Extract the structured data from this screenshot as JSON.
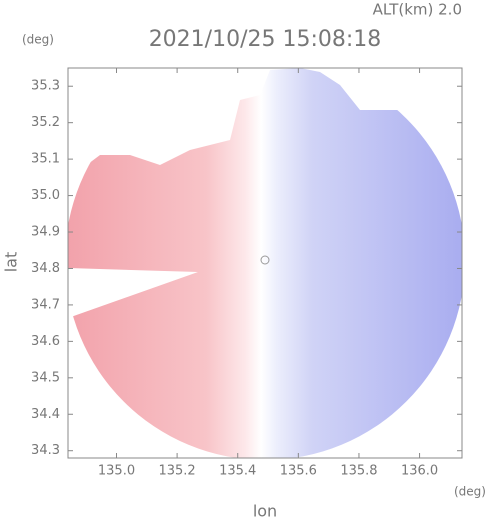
{
  "chart_data": {
    "type": "radar-map",
    "title": "2021/10/25 15:08:18",
    "subtitle": "ALT(km) 2.0",
    "y_unit": "(deg)",
    "x_unit": "(deg)",
    "ylabel": "lat",
    "xlabel": "lon",
    "xlim": [
      134.84,
      136.14
    ],
    "ylim": [
      34.28,
      35.35
    ],
    "xticks": [
      {
        "value": 135,
        "label": "135.0"
      },
      135.2,
      135.4,
      135.6,
      135.8,
      {
        "value": 136,
        "label": "136.0"
      }
    ],
    "yticks": [
      34.3,
      34.4,
      34.5,
      34.6,
      34.7,
      34.8,
      34.9,
      {
        "value": 35,
        "label": "35.0"
      },
      35.1,
      35.2,
      35.3
    ]
  }
}
